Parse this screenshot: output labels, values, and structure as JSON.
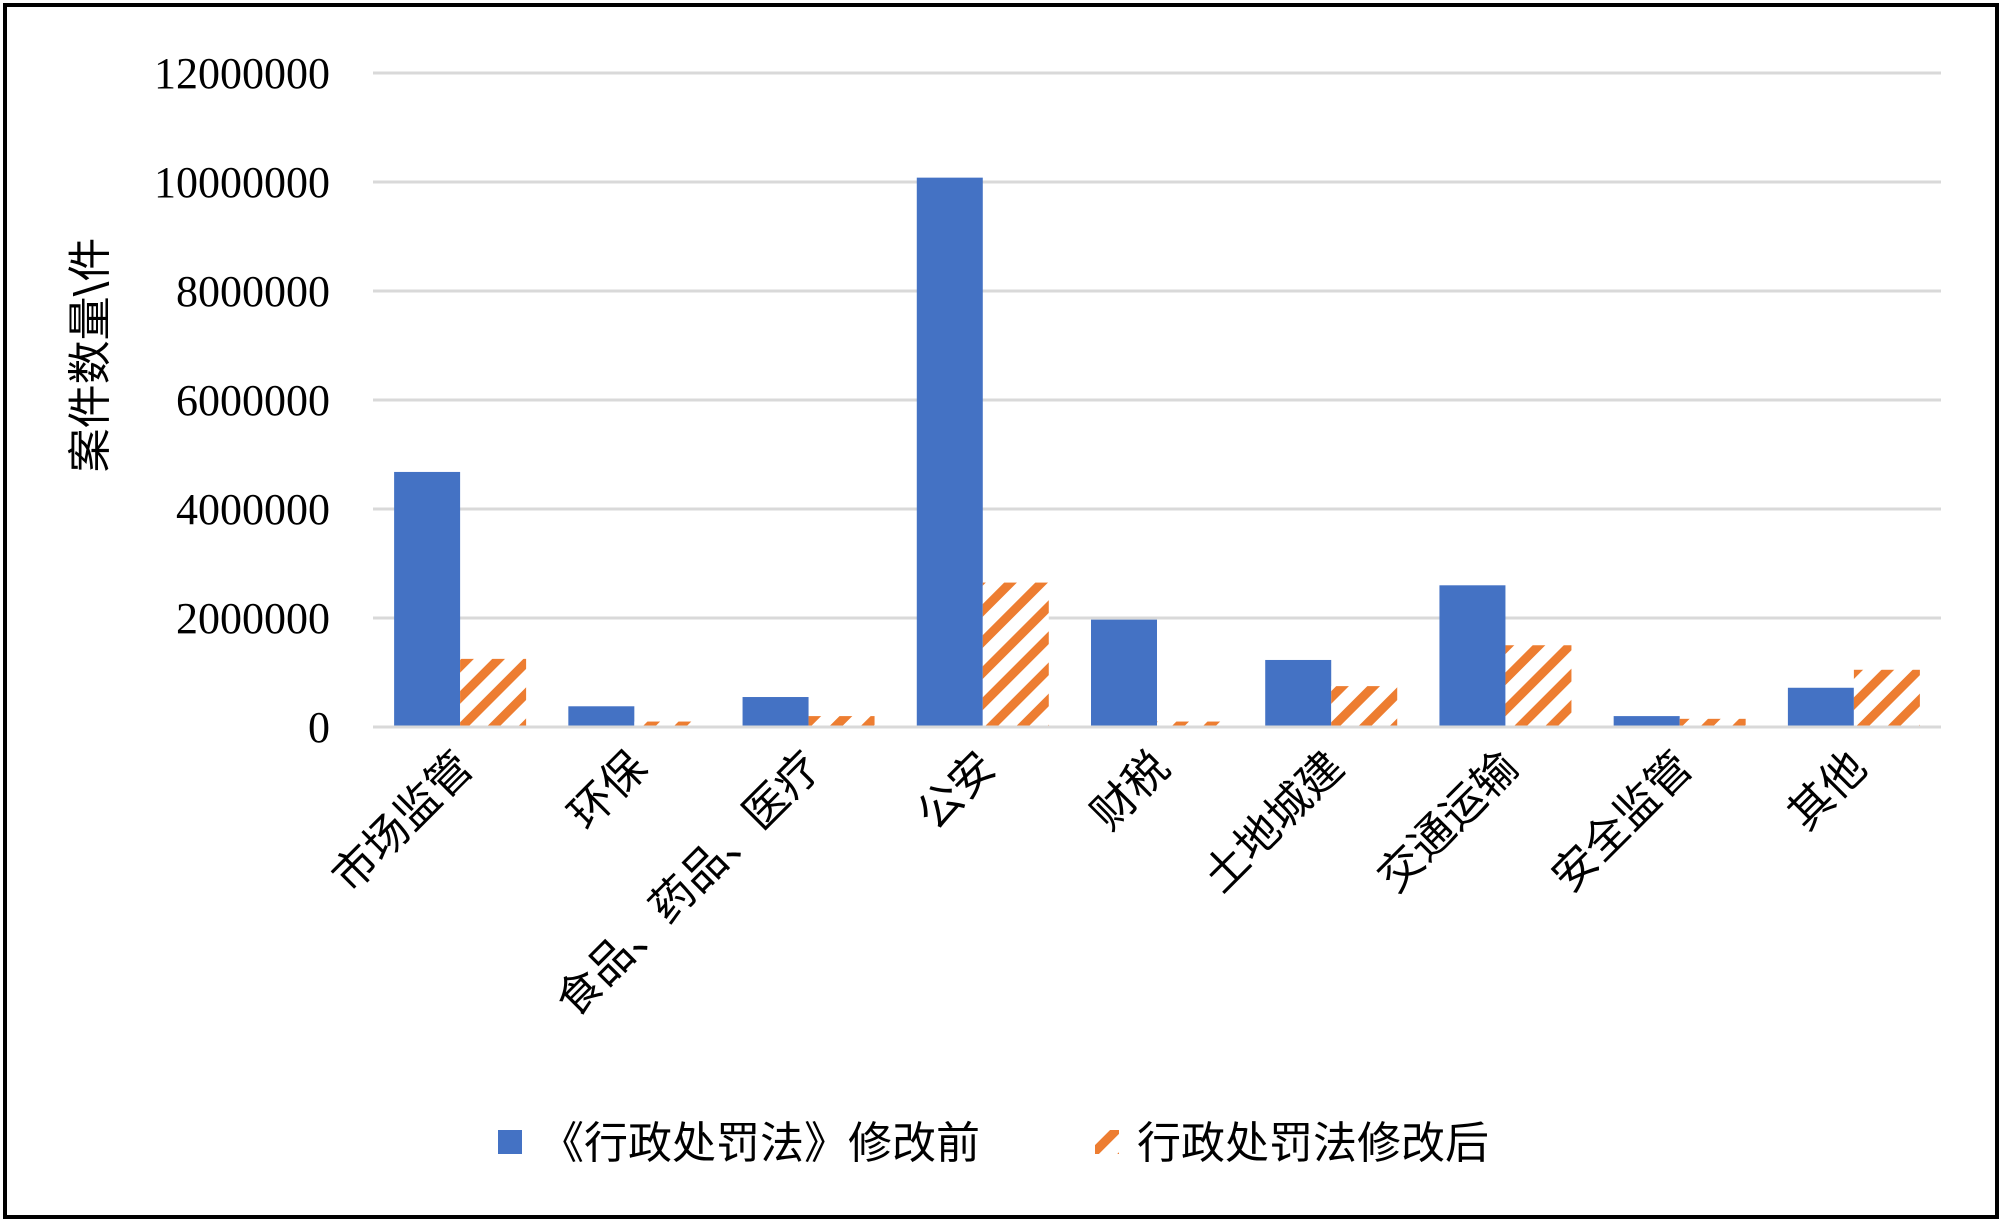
{
  "chart_data": {
    "type": "bar",
    "title": "",
    "ylabel": "案件数量\\件",
    "xlabel": "",
    "ylim": [
      0,
      12000000
    ],
    "yticks": [
      0,
      2000000,
      4000000,
      6000000,
      8000000,
      10000000,
      12000000
    ],
    "ytick_labels": [
      "0",
      "2000000",
      "4000000",
      "6000000",
      "8000000",
      "10000000",
      "12000000"
    ],
    "grid": true,
    "legend_position": "bottom",
    "categories": [
      "市场监管",
      "环保",
      "食品、药品、医疗",
      "公安",
      "财税",
      "土地城建",
      "交通运输",
      "安全监管",
      "其他"
    ],
    "series": [
      {
        "name": "《行政处罚法》修改前",
        "color": "#4472C4",
        "pattern": "solid",
        "values": [
          4680000,
          380000,
          550000,
          10080000,
          1970000,
          1230000,
          2600000,
          200000,
          720000
        ]
      },
      {
        "name": "行政处罚法修改后",
        "color": "#ED7D31",
        "pattern": "hatched",
        "values": [
          1250000,
          100000,
          200000,
          2650000,
          100000,
          750000,
          1500000,
          150000,
          1050000
        ]
      }
    ]
  }
}
